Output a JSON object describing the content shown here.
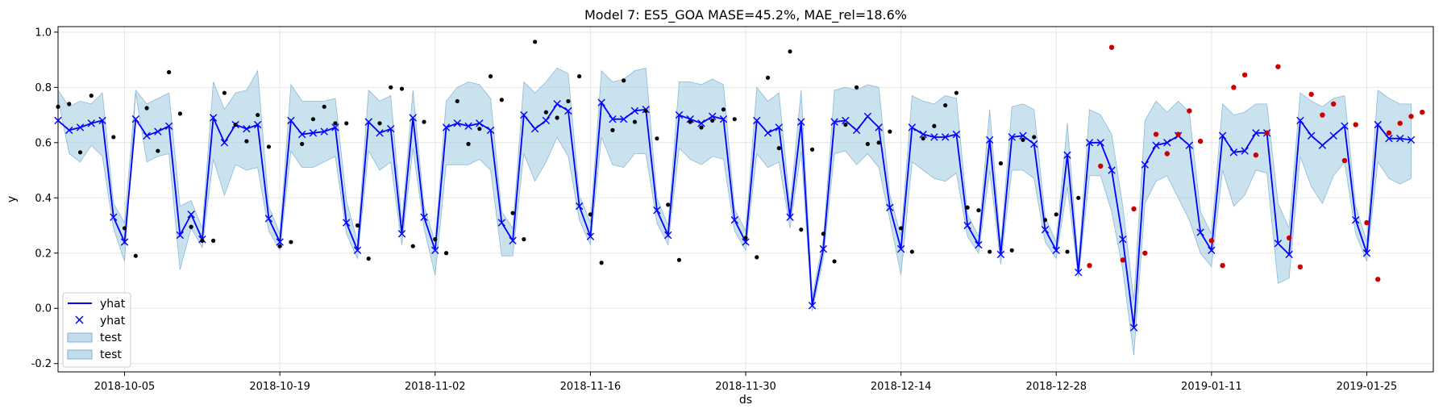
{
  "chart_data": {
    "type": "line",
    "title": "Model 7: ES5_GOA MASE=45.2%, MAE_rel=18.6%",
    "xlabel": "ds",
    "ylabel": "y",
    "x_range": [
      "2018-09-29",
      "2019-01-31"
    ],
    "y_range": [
      -0.23,
      1.02
    ],
    "x_ticks": [
      "2018-10-05",
      "2018-10-19",
      "2018-11-02",
      "2018-11-16",
      "2018-11-30",
      "2018-12-14",
      "2018-12-28",
      "2019-01-11",
      "2019-01-25"
    ],
    "y_ticks": [
      "-0.2",
      "0.0",
      "0.2",
      "0.4",
      "0.6",
      "0.8",
      "1.0"
    ],
    "grid": true,
    "legend_position": "lower-left",
    "legend": [
      {
        "label": "yhat",
        "kind": "line"
      },
      {
        "label": "yhat",
        "kind": "marker"
      },
      {
        "label": "test",
        "kind": "patch"
      },
      {
        "label": "test",
        "kind": "patch"
      }
    ],
    "colors": {
      "forecast": "#0000ff",
      "band": "#a6cde2",
      "train_points": "#000000",
      "test_points": "#cc0000",
      "grid": "#e6e6e6"
    },
    "yhat_start": "2018-09-29",
    "yhat": [
      0.68,
      0.645,
      0.655,
      0.67,
      0.68,
      0.33,
      0.24,
      0.685,
      0.625,
      0.64,
      0.66,
      0.265,
      0.34,
      0.25,
      0.69,
      0.6,
      0.665,
      0.65,
      0.665,
      0.325,
      0.24,
      0.68,
      0.63,
      0.635,
      0.64,
      0.655,
      0.31,
      0.21,
      0.675,
      0.635,
      0.65,
      0.27,
      0.69,
      0.33,
      0.21,
      0.655,
      0.67,
      0.66,
      0.67,
      0.645,
      0.31,
      0.245,
      0.7,
      0.65,
      0.68,
      0.74,
      0.715,
      0.37,
      0.26,
      0.745,
      0.685,
      0.685,
      0.715,
      0.72,
      0.355,
      0.265,
      0.7,
      0.685,
      0.67,
      0.695,
      0.685,
      0.32,
      0.24,
      0.68,
      0.635,
      0.655,
      0.33,
      0.675,
      0.01,
      0.215,
      0.675,
      0.68,
      0.645,
      0.695,
      0.655,
      0.365,
      0.215,
      0.655,
      0.63,
      0.62,
      0.62,
      0.63,
      0.3,
      0.23,
      0.61,
      0.195,
      0.62,
      0.625,
      0.595,
      0.285,
      0.21,
      0.555,
      0.13,
      0.6,
      0.6,
      0.5,
      0.25,
      -0.07,
      0.52,
      0.59,
      0.6,
      0.625,
      0.59,
      0.275,
      0.21,
      0.625,
      0.565,
      0.57,
      0.635,
      0.635,
      0.235,
      0.195,
      0.68,
      0.625,
      0.59,
      0.625,
      0.66,
      0.32,
      0.2,
      0.665,
      0.615,
      0.615,
      0.61
    ],
    "lower": [
      0.76,
      0.56,
      0.53,
      0.59,
      0.55,
      0.29,
      0.17,
      0.78,
      0.53,
      0.55,
      0.56,
      0.14,
      0.29,
      0.22,
      0.54,
      0.41,
      0.52,
      0.5,
      0.51,
      0.28,
      0.21,
      0.57,
      0.51,
      0.51,
      0.53,
      0.55,
      0.27,
      0.18,
      0.57,
      0.5,
      0.53,
      0.23,
      0.58,
      0.29,
      0.12,
      0.52,
      0.52,
      0.52,
      0.54,
      0.5,
      0.19,
      0.19,
      0.56,
      0.46,
      0.53,
      0.62,
      0.55,
      0.32,
      0.23,
      0.62,
      0.52,
      0.51,
      0.56,
      0.56,
      0.31,
      0.23,
      0.58,
      0.54,
      0.52,
      0.55,
      0.54,
      0.28,
      0.21,
      0.56,
      0.51,
      0.53,
      0.29,
      0.57,
      -0.01,
      0.18,
      0.56,
      0.57,
      0.52,
      0.56,
      0.51,
      0.32,
      0.12,
      0.53,
      0.5,
      0.47,
      0.46,
      0.49,
      0.26,
      0.2,
      0.5,
      0.16,
      0.5,
      0.5,
      0.47,
      0.24,
      0.18,
      0.44,
      0.11,
      0.48,
      0.48,
      0.35,
      0.14,
      -0.17,
      0.38,
      0.46,
      0.48,
      0.4,
      0.32,
      0.2,
      0.15,
      0.5,
      0.37,
      0.41,
      0.5,
      0.49,
      0.09,
      0.11,
      0.55,
      0.44,
      0.38,
      0.48,
      0.53,
      0.27,
      0.17,
      0.53,
      0.47,
      0.45,
      0.47
    ],
    "upper": [
      0.79,
      0.73,
      0.75,
      0.74,
      0.78,
      0.38,
      0.31,
      0.79,
      0.74,
      0.76,
      0.78,
      0.37,
      0.39,
      0.29,
      0.82,
      0.72,
      0.78,
      0.79,
      0.86,
      0.37,
      0.27,
      0.81,
      0.75,
      0.75,
      0.75,
      0.76,
      0.39,
      0.24,
      0.79,
      0.75,
      0.77,
      0.31,
      0.79,
      0.37,
      0.24,
      0.75,
      0.8,
      0.82,
      0.81,
      0.76,
      0.35,
      0.29,
      0.82,
      0.78,
      0.82,
      0.87,
      0.85,
      0.41,
      0.31,
      0.86,
      0.82,
      0.83,
      0.86,
      0.87,
      0.4,
      0.3,
      0.82,
      0.82,
      0.81,
      0.83,
      0.81,
      0.36,
      0.28,
      0.8,
      0.75,
      0.78,
      0.37,
      0.79,
      0.04,
      0.25,
      0.79,
      0.8,
      0.79,
      0.81,
      0.8,
      0.41,
      0.26,
      0.77,
      0.75,
      0.74,
      0.77,
      0.76,
      0.34,
      0.26,
      0.72,
      0.23,
      0.73,
      0.74,
      0.72,
      0.33,
      0.24,
      0.67,
      0.16,
      0.72,
      0.7,
      0.63,
      0.37,
      0.03,
      0.68,
      0.75,
      0.71,
      0.75,
      0.71,
      0.35,
      0.27,
      0.74,
      0.7,
      0.71,
      0.74,
      0.74,
      0.38,
      0.29,
      0.78,
      0.75,
      0.73,
      0.76,
      0.77,
      0.37,
      0.24,
      0.79,
      0.76,
      0.74,
      0.74
    ],
    "train_points": [
      [
        "2018-09-29",
        0.73
      ],
      [
        "2018-09-30",
        0.74
      ],
      [
        "2018-10-01",
        0.565
      ],
      [
        "2018-10-02",
        0.77
      ],
      [
        "2018-10-04",
        0.62
      ],
      [
        "2018-10-05",
        0.29
      ],
      [
        "2018-10-06",
        0.19
      ],
      [
        "2018-10-07",
        0.725
      ],
      [
        "2018-10-08",
        0.57
      ],
      [
        "2018-10-09",
        0.855
      ],
      [
        "2018-10-10",
        0.705
      ],
      [
        "2018-10-11",
        0.295
      ],
      [
        "2018-10-12",
        0.245
      ],
      [
        "2018-10-13",
        0.245
      ],
      [
        "2018-10-14",
        0.78
      ],
      [
        "2018-10-15",
        0.665
      ],
      [
        "2018-10-16",
        0.605
      ],
      [
        "2018-10-17",
        0.7
      ],
      [
        "2018-10-18",
        0.585
      ],
      [
        "2018-10-19",
        0.225
      ],
      [
        "2018-10-20",
        0.24
      ],
      [
        "2018-10-21",
        0.595
      ],
      [
        "2018-10-22",
        0.685
      ],
      [
        "2018-10-23",
        0.73
      ],
      [
        "2018-10-24",
        0.67
      ],
      [
        "2018-10-25",
        0.67
      ],
      [
        "2018-10-26",
        0.3
      ],
      [
        "2018-10-27",
        0.18
      ],
      [
        "2018-10-28",
        0.67
      ],
      [
        "2018-10-29",
        0.8
      ],
      [
        "2018-10-30",
        0.795
      ],
      [
        "2018-10-31",
        0.225
      ],
      [
        "2018-11-01",
        0.675
      ],
      [
        "2018-11-02",
        0.25
      ],
      [
        "2018-11-03",
        0.2
      ],
      [
        "2018-11-04",
        0.75
      ],
      [
        "2018-11-05",
        0.595
      ],
      [
        "2018-11-06",
        0.65
      ],
      [
        "2018-11-07",
        0.84
      ],
      [
        "2018-11-08",
        0.755
      ],
      [
        "2018-11-09",
        0.345
      ],
      [
        "2018-11-10",
        0.25
      ],
      [
        "2018-11-11",
        0.965
      ],
      [
        "2018-11-12",
        0.71
      ],
      [
        "2018-11-13",
        0.69
      ],
      [
        "2018-11-14",
        0.75
      ],
      [
        "2018-11-15",
        0.84
      ],
      [
        "2018-11-16",
        0.34
      ],
      [
        "2018-11-17",
        0.165
      ],
      [
        "2018-11-18",
        0.645
      ],
      [
        "2018-11-19",
        0.825
      ],
      [
        "2018-11-20",
        0.675
      ],
      [
        "2018-11-21",
        0.715
      ],
      [
        "2018-11-22",
        0.615
      ],
      [
        "2018-11-23",
        0.375
      ],
      [
        "2018-11-24",
        0.175
      ],
      [
        "2018-11-25",
        0.675
      ],
      [
        "2018-11-26",
        0.655
      ],
      [
        "2018-11-27",
        0.68
      ],
      [
        "2018-11-28",
        0.72
      ],
      [
        "2018-11-29",
        0.685
      ],
      [
        "2018-11-30",
        0.255
      ],
      [
        "2018-12-01",
        0.185
      ],
      [
        "2018-12-02",
        0.835
      ],
      [
        "2018-12-03",
        0.58
      ],
      [
        "2018-12-04",
        0.93
      ],
      [
        "2018-12-05",
        0.285
      ],
      [
        "2018-12-06",
        0.575
      ],
      [
        "2018-12-07",
        0.27
      ],
      [
        "2018-12-08",
        0.17
      ],
      [
        "2018-12-09",
        0.665
      ],
      [
        "2018-12-10",
        0.8
      ],
      [
        "2018-12-11",
        0.595
      ],
      [
        "2018-12-12",
        0.6
      ],
      [
        "2018-12-13",
        0.64
      ],
      [
        "2018-12-14",
        0.29
      ],
      [
        "2018-12-15",
        0.205
      ],
      [
        "2018-12-16",
        0.615
      ],
      [
        "2018-12-17",
        0.66
      ],
      [
        "2018-12-18",
        0.735
      ],
      [
        "2018-12-19",
        0.78
      ],
      [
        "2018-12-20",
        0.365
      ],
      [
        "2018-12-21",
        0.355
      ],
      [
        "2018-12-22",
        0.205
      ],
      [
        "2018-12-23",
        0.525
      ],
      [
        "2018-12-24",
        0.21
      ],
      [
        "2018-12-25",
        0.61
      ],
      [
        "2018-12-26",
        0.62
      ],
      [
        "2018-12-27",
        0.32
      ],
      [
        "2018-12-28",
        0.34
      ],
      [
        "2018-12-29",
        0.205
      ],
      [
        "2018-12-30",
        0.4
      ]
    ],
    "test_points": [
      [
        "2018-12-31",
        0.155
      ],
      [
        "2019-01-01",
        0.515
      ],
      [
        "2019-01-02",
        0.945
      ],
      [
        "2019-01-03",
        0.175
      ],
      [
        "2019-01-04",
        0.36
      ],
      [
        "2019-01-05",
        0.2
      ],
      [
        "2019-01-06",
        0.63
      ],
      [
        "2019-01-07",
        0.56
      ],
      [
        "2019-01-08",
        0.63
      ],
      [
        "2019-01-09",
        0.715
      ],
      [
        "2019-01-10",
        0.605
      ],
      [
        "2019-01-11",
        0.245
      ],
      [
        "2019-01-12",
        0.155
      ],
      [
        "2019-01-13",
        0.8
      ],
      [
        "2019-01-14",
        0.845
      ],
      [
        "2019-01-15",
        0.555
      ],
      [
        "2019-01-16",
        0.635
      ],
      [
        "2019-01-17",
        0.875
      ],
      [
        "2019-01-18",
        0.255
      ],
      [
        "2019-01-19",
        0.15
      ],
      [
        "2019-01-20",
        0.775
      ],
      [
        "2019-01-21",
        0.7
      ],
      [
        "2019-01-22",
        0.74
      ],
      [
        "2019-01-23",
        0.535
      ],
      [
        "2019-01-24",
        0.665
      ],
      [
        "2019-01-25",
        0.31
      ],
      [
        "2019-01-26",
        0.105
      ],
      [
        "2019-01-27",
        0.635
      ],
      [
        "2019-01-28",
        0.67
      ],
      [
        "2019-01-29",
        0.695
      ],
      [
        "2019-01-30",
        0.71
      ]
    ]
  }
}
